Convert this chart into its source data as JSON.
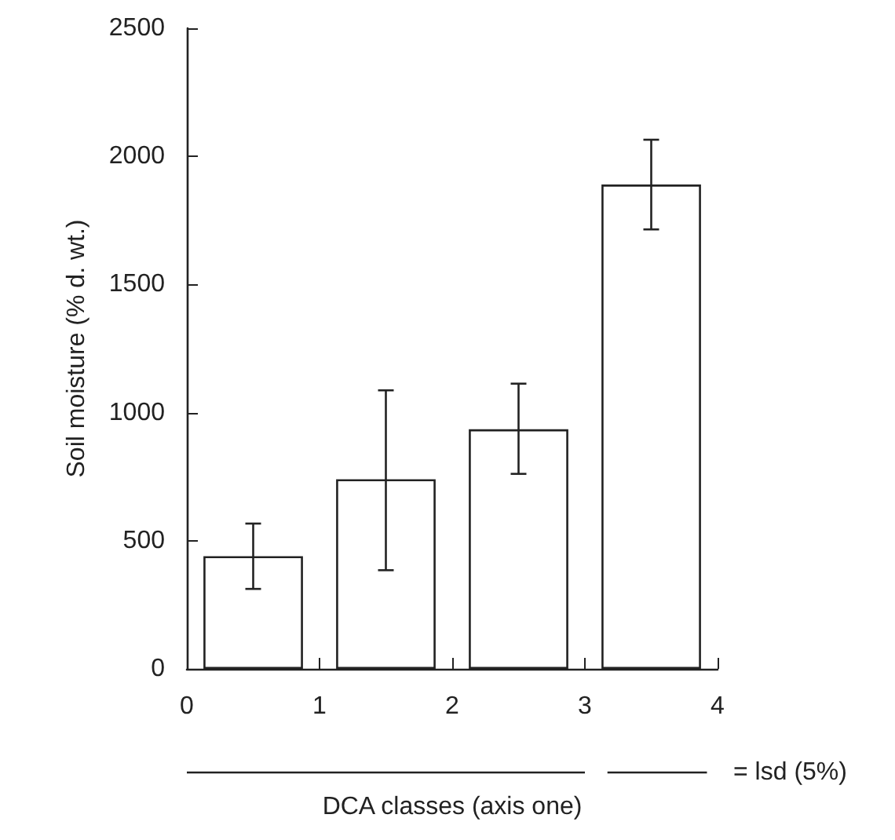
{
  "chart_data": {
    "type": "bar",
    "xlabel": "DCA classes (axis one)",
    "ylabel": "Soil moisture (% d. wt.)",
    "x": [
      0.5,
      1.5,
      2.5,
      3.5
    ],
    "values": [
      440,
      740,
      935,
      1890
    ],
    "errors": [
      [
        312,
        567
      ],
      [
        385,
        1087
      ],
      [
        761,
        1113
      ],
      [
        1715,
        2065
      ]
    ],
    "color": "#ffffff",
    "xlim": [
      0,
      4
    ],
    "xticks": [
      0,
      1,
      2,
      3,
      4
    ],
    "ylim": [
      0,
      2500
    ],
    "yticks": [
      0,
      500,
      1000,
      1500,
      2000,
      2500
    ],
    "grid": false,
    "annotations": [
      "= lsd (5%)"
    ]
  }
}
